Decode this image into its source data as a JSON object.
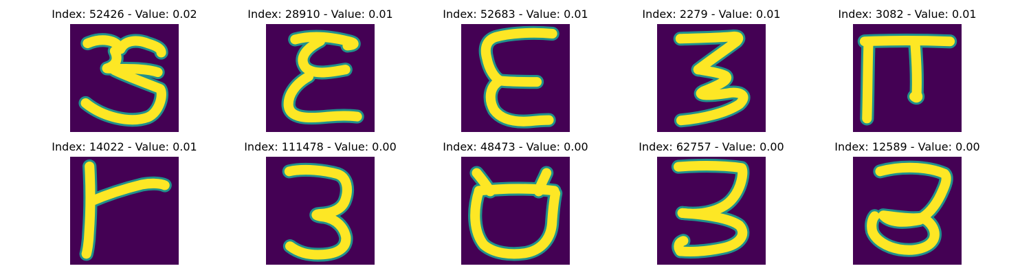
{
  "chart_data": {
    "type": "image-grid",
    "layout": {
      "rows": 2,
      "cols": 5
    },
    "colormap": {
      "name": "viridis",
      "low": "#440154",
      "mid": "#21918c",
      "high": "#fde725"
    },
    "axis_visible": false,
    "panels": [
      {
        "index": 52426,
        "value": 0.02,
        "title": "Index: 52426 - Value: 0.02",
        "glyph": "ba-3"
      },
      {
        "index": 28910,
        "value": 0.01,
        "title": "Index: 28910 - Value: 0.01",
        "glyph": "reverse-3-loops"
      },
      {
        "index": 52683,
        "value": 0.01,
        "title": "Index: 52683 - Value: 0.01",
        "glyph": "open-e"
      },
      {
        "index": 2279,
        "value": 0.01,
        "title": "Index: 2279 - Value: 0.01",
        "glyph": "zigzag-3"
      },
      {
        "index": 3082,
        "value": 0.01,
        "title": "Index: 3082 - Value: 0.01",
        "glyph": "pi-shape"
      },
      {
        "index": 14022,
        "value": 0.01,
        "title": "Index: 14022 - Value: 0.01",
        "glyph": "t-shape"
      },
      {
        "index": 111478,
        "value": 0.0,
        "title": "Index: 111478 - Value: 0.00",
        "glyph": "three"
      },
      {
        "index": 48473,
        "value": 0.0,
        "title": "Index: 48473 - Value: 0.00",
        "glyph": "cup-shape"
      },
      {
        "index": 62757,
        "value": 0.0,
        "title": "Index: 62757 - Value: 0.00",
        "glyph": "three-flat-top"
      },
      {
        "index": 12589,
        "value": 0.0,
        "title": "Index: 12589 - Value: 0.00",
        "glyph": "three-hook"
      }
    ]
  }
}
